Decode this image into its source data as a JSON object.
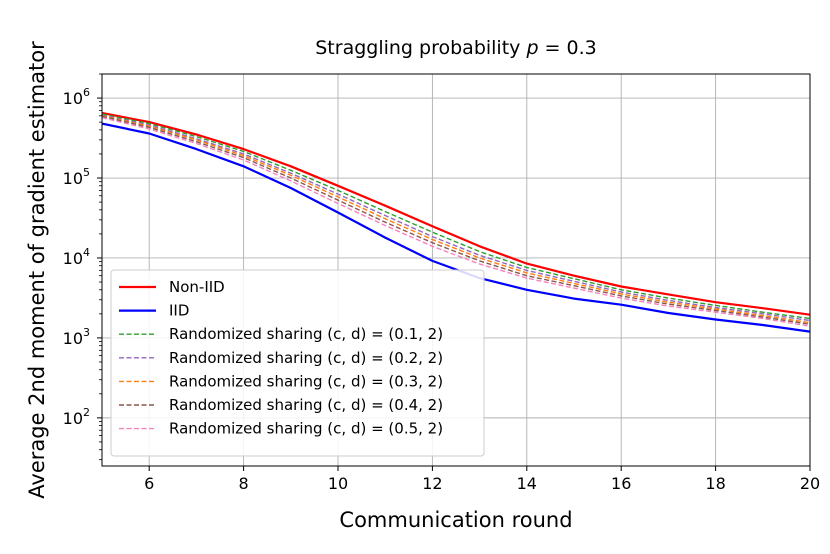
{
  "chart_data": {
    "type": "line",
    "title": "Straggling probability p = 0.3",
    "xlabel": "Communication round",
    "ylabel": "Average 2nd moment of gradient estimator",
    "yscale": "log",
    "xlim": [
      5,
      20
    ],
    "ylim": [
      25,
      2000000
    ],
    "grid": true,
    "legend_location": "lower-left",
    "x_ticks": [
      "6",
      "8",
      "10",
      "12",
      "14",
      "16",
      "18",
      "20"
    ],
    "y_ticks": [
      {
        "base": "10",
        "exp": "2"
      },
      {
        "base": "10",
        "exp": "3"
      },
      {
        "base": "10",
        "exp": "4"
      },
      {
        "base": "10",
        "exp": "5"
      },
      {
        "base": "10",
        "exp": "6"
      }
    ],
    "x": [
      5,
      6,
      7,
      8,
      9,
      10,
      11,
      12,
      13,
      14,
      15,
      16,
      17,
      18,
      19,
      20
    ],
    "series": [
      {
        "name": "Non-IID",
        "color": "#ff0000",
        "style": "solid",
        "values": [
          650000,
          500000,
          350000,
          230000,
          140000,
          80000,
          45000,
          25000,
          14000,
          8500,
          6000,
          4400,
          3500,
          2800,
          2350,
          1950
        ]
      },
      {
        "name": "IID",
        "color": "#0000ff",
        "style": "solid",
        "values": [
          480000,
          360000,
          230000,
          140000,
          75000,
          37000,
          18000,
          9200,
          5600,
          4000,
          3100,
          2600,
          2050,
          1700,
          1450,
          1200
        ]
      },
      {
        "name": "Randomized sharing (c, d) = (0.1, 2)",
        "color": "#2ca02c",
        "style": "dashed",
        "values": [
          630000,
          480000,
          330000,
          215000,
          125000,
          70000,
          38000,
          21000,
          12000,
          7600,
          5500,
          4000,
          3150,
          2550,
          2100,
          1750
        ]
      },
      {
        "name": "Randomized sharing (c, d) = (0.2, 2)",
        "color": "#9467bd",
        "style": "dashed",
        "values": [
          610000,
          460000,
          310000,
          200000,
          115000,
          63000,
          34000,
          18500,
          10800,
          7000,
          5100,
          3750,
          2950,
          2400,
          2000,
          1650
        ]
      },
      {
        "name": "Randomized sharing (c, d) = (0.3, 2)",
        "color": "#ff7f0e",
        "style": "dashed",
        "values": [
          600000,
          445000,
          300000,
          190000,
          108000,
          58000,
          31000,
          17000,
          10000,
          6500,
          4800,
          3550,
          2800,
          2300,
          1900,
          1550
        ]
      },
      {
        "name": "Randomized sharing (c, d) = (0.4, 2)",
        "color": "#8c564b",
        "style": "dashed",
        "values": [
          590000,
          430000,
          285000,
          180000,
          100000,
          53000,
          28000,
          15500,
          9200,
          6000,
          4500,
          3350,
          2650,
          2200,
          1820,
          1480
        ]
      },
      {
        "name": "Randomized sharing (c, d) = (0.5, 2)",
        "color": "#f781bf",
        "style": "dashed",
        "values": [
          570000,
          410000,
          270000,
          168000,
          92000,
          48000,
          25500,
          14000,
          8400,
          5600,
          4200,
          3150,
          2500,
          2100,
          1750,
          1400
        ]
      }
    ]
  }
}
